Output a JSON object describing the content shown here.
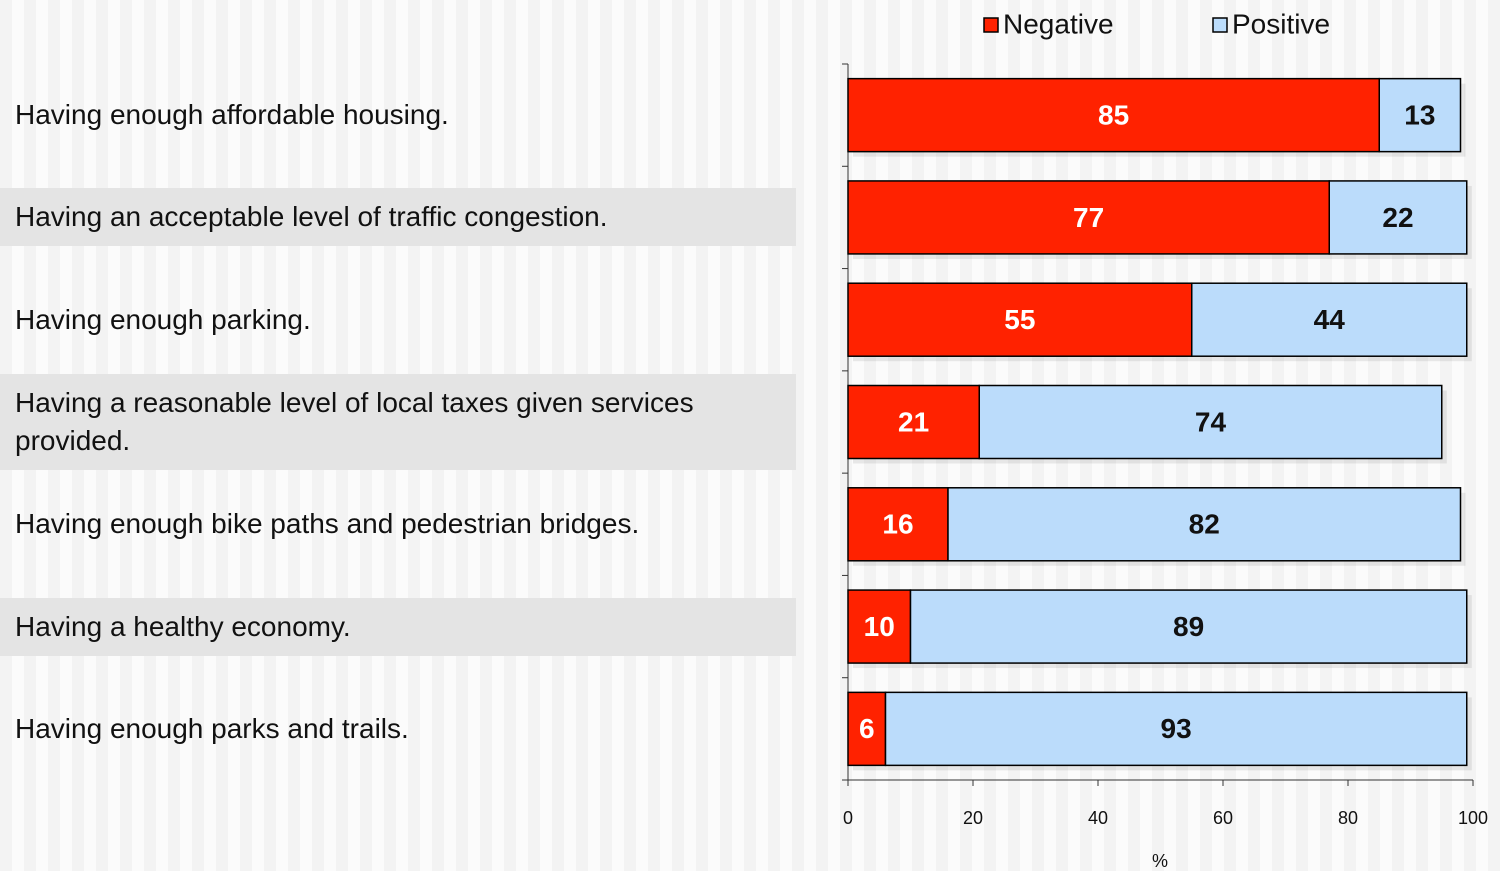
{
  "chart_data": {
    "type": "stacked-barh",
    "categories": [
      "Having enough affordable housing.",
      "Having an acceptable level of traffic congestion.",
      "Having enough parking.",
      "Having a reasonable level of local taxes given services provided.",
      "Having enough bike paths and pedestrian bridges.",
      "Having a healthy economy.",
      "Having enough parks and trails."
    ],
    "series": [
      {
        "name": "Negative",
        "color": "#ff2200",
        "label_color": "#ffffff",
        "values": [
          85,
          77,
          55,
          21,
          16,
          10,
          6
        ]
      },
      {
        "name": "Positive",
        "color": "#bbdcfb",
        "label_color": "#111111",
        "values": [
          13,
          22,
          44,
          74,
          82,
          89,
          93
        ]
      }
    ],
    "xlim": [
      0,
      100
    ],
    "xticks": [
      0,
      20,
      40,
      60,
      80,
      100
    ],
    "xlabel": "%"
  }
}
